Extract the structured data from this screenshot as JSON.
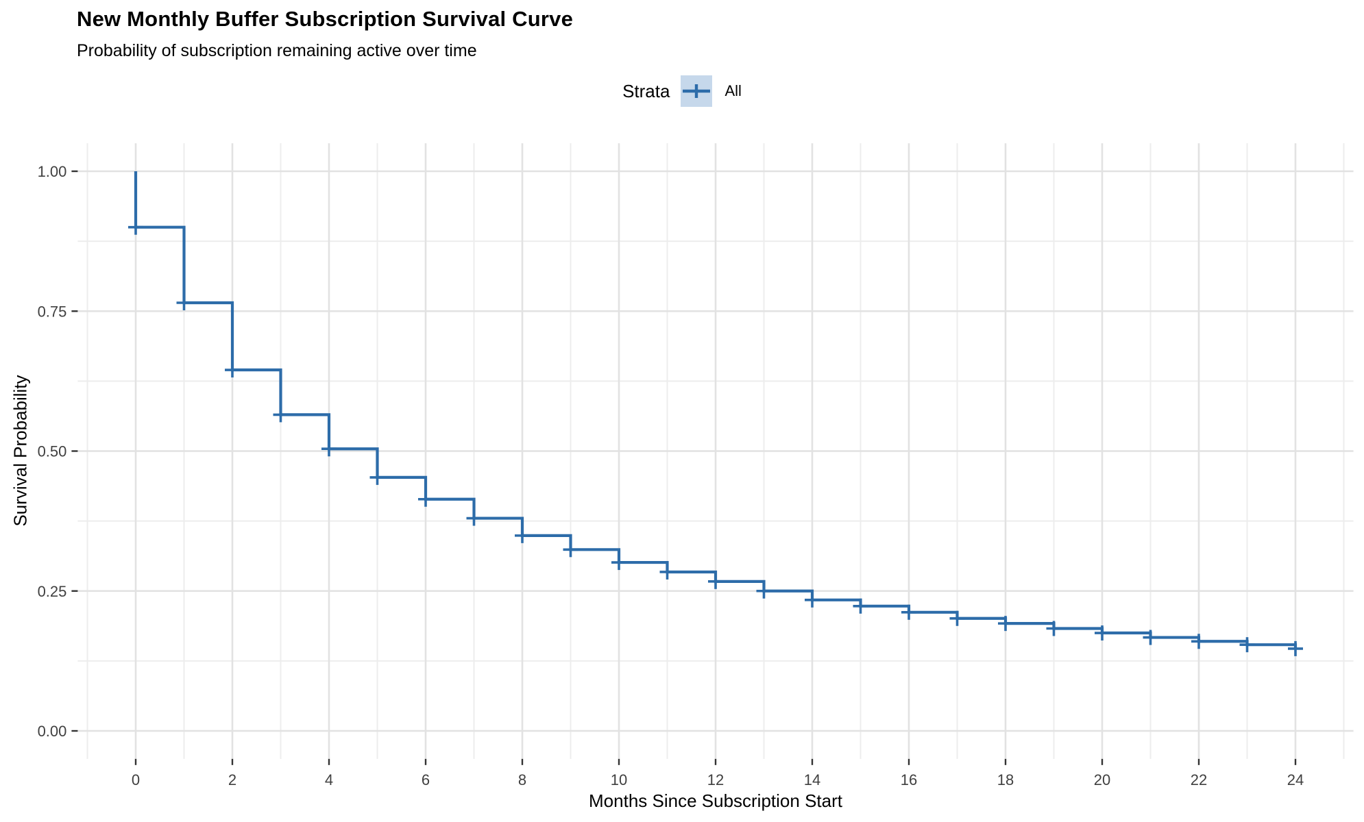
{
  "chart_data": {
    "type": "line",
    "variant": "kaplan-meier-step-survival",
    "title": "New Monthly Buffer Subscription Survival Curve",
    "subtitle": "Probability of subscription remaining active over time",
    "xlabel": "Months Since Subscription Start",
    "ylabel": "Survival Probability",
    "legend": {
      "title": "Strata",
      "position": "top-center",
      "entries": [
        {
          "label": "All"
        }
      ]
    },
    "start_point": {
      "x": 0,
      "y": 1.0
    },
    "x": [
      0,
      1,
      2,
      3,
      4,
      5,
      6,
      7,
      8,
      9,
      10,
      11,
      12,
      13,
      14,
      15,
      16,
      17,
      18,
      19,
      20,
      21,
      22,
      23,
      24
    ],
    "survival": [
      0.9,
      0.765,
      0.645,
      0.565,
      0.504,
      0.453,
      0.414,
      0.38,
      0.349,
      0.324,
      0.301,
      0.284,
      0.267,
      0.25,
      0.234,
      0.223,
      0.212,
      0.201,
      0.192,
      0.183,
      0.175,
      0.167,
      0.16,
      0.154,
      0.147
    ],
    "censor_marks_at_x": [
      0,
      1,
      2,
      3,
      4,
      5,
      6,
      7,
      8,
      9,
      10,
      11,
      12,
      13,
      14,
      15,
      16,
      17,
      18,
      19,
      20,
      21,
      22,
      23,
      24
    ],
    "x_ticks": [
      0,
      2,
      4,
      6,
      8,
      10,
      12,
      14,
      16,
      18,
      20,
      22,
      24
    ],
    "x_minor_gridlines": [
      -1,
      1,
      3,
      5,
      7,
      9,
      11,
      13,
      15,
      17,
      19,
      21,
      23,
      25
    ],
    "y_ticks": [
      0,
      0.25,
      0.5,
      0.75,
      1
    ],
    "y_tick_labels": [
      "0.00",
      "0.25",
      "0.50",
      "0.75",
      "1.00"
    ],
    "y_minor_gridlines": [
      0.125,
      0.375,
      0.625,
      0.875
    ],
    "xlim": [
      -1.2,
      25.2
    ],
    "ylim": [
      -0.05,
      1.05
    ],
    "grid": "on",
    "colors": {
      "line": "#2d6ca9",
      "legend_key_bg": "#c6d8eb",
      "grid_major": "#e2e2e2",
      "grid_minor": "#ededed",
      "axis_tick": "#333333",
      "tick_label": "#404040"
    }
  }
}
